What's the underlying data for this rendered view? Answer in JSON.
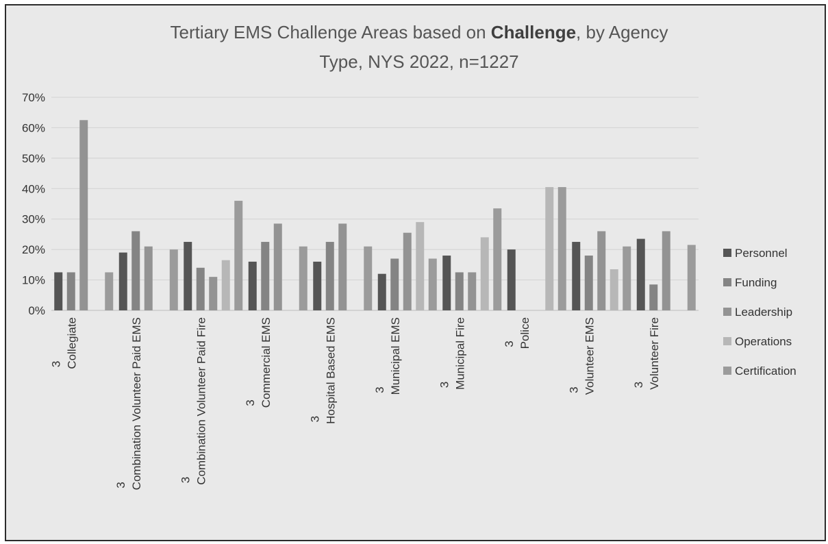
{
  "chart_data": {
    "type": "bar",
    "title_line1_prefix": "Tertiary EMS Challenge Areas based on ",
    "title_line1_bold": "Challenge",
    "title_line1_suffix": ", by Agency",
    "title_line2": "Type, NYS 2022, n=1227",
    "xlabel": "",
    "ylabel": "",
    "ylim": [
      0,
      70
    ],
    "ytick_labels": [
      "0%",
      "10%",
      "20%",
      "30%",
      "40%",
      "50%",
      "60%",
      "70%"
    ],
    "grid": true,
    "legend_position": "right",
    "categories": [
      {
        "prefix": "3",
        "name": "Collegiate"
      },
      {
        "prefix": "3",
        "name": "Combination Volunteer Paid EMS"
      },
      {
        "prefix": "3",
        "name": "Combination Volunteer Paid Fire"
      },
      {
        "prefix": "3",
        "name": "Commercial EMS"
      },
      {
        "prefix": "3",
        "name": "Hospital Based EMS"
      },
      {
        "prefix": "3",
        "name": "Municipal EMS"
      },
      {
        "prefix": "3",
        "name": "Municipal Fire"
      },
      {
        "prefix": "3",
        "name": "Police"
      },
      {
        "prefix": "3",
        "name": "Volunteer EMS"
      },
      {
        "prefix": "3",
        "name": "Volunteer Fire"
      }
    ],
    "series": [
      {
        "name": "Personnel",
        "color": "#555555",
        "values": [
          12.5,
          19,
          22.5,
          16,
          16,
          12,
          18,
          20,
          22.5,
          23.5
        ]
      },
      {
        "name": "Funding",
        "color": "#848484",
        "values": [
          12.5,
          26,
          14,
          22.5,
          22.5,
          17,
          12.5,
          0,
          18,
          8.5
        ]
      },
      {
        "name": "Leadership",
        "color": "#939393",
        "values": [
          62.5,
          21,
          11,
          28.5,
          28.5,
          25.5,
          12.5,
          0,
          26,
          26
        ]
      },
      {
        "name": "Operations",
        "color": "#b7b7b7",
        "values": [
          0,
          0,
          16.5,
          0,
          0,
          29,
          24,
          40.5,
          13.5,
          0
        ]
      },
      {
        "name": "Certification",
        "color": "#9b9b9b",
        "values": [
          12.5,
          20,
          36,
          21,
          21,
          17,
          33.5,
          40.5,
          21,
          21.5
        ]
      }
    ]
  }
}
